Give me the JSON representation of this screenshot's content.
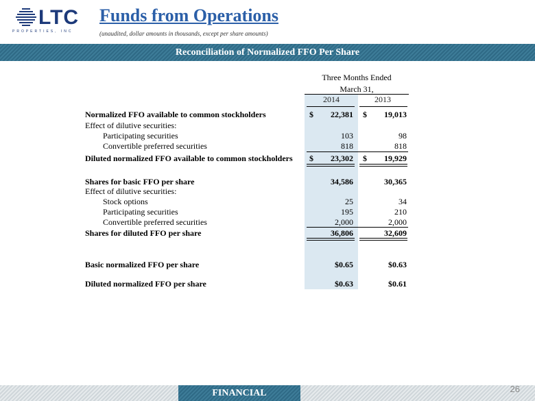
{
  "header": {
    "logo_text": "LTC",
    "logo_subtext": "PROPERTIES, INC",
    "title": "Funds from Operations",
    "subtitle": "(unaudited, dollar amounts in thousands, except per share amounts)"
  },
  "band_title": "Reconciliation of Normalized FFO  Per Share",
  "table": {
    "header_line1": "Three Months Ended",
    "header_line2": "March 31,",
    "years": [
      "2014",
      "2013"
    ],
    "rows": [
      {
        "label": "Normalized FFO available to common stockholders",
        "c1": "22,381",
        "c2": "19,013",
        "dollar": "$"
      },
      {
        "label": "Effect of dilutive securities:",
        "c1": "",
        "c2": ""
      },
      {
        "label": "Participating securities",
        "c1": "103",
        "c2": "98"
      },
      {
        "label": "Convertible preferred securities",
        "c1": "818",
        "c2": "818"
      },
      {
        "label": "Diluted normalized FFO available to common stockholders",
        "c1": "23,302",
        "c2": "19,929",
        "dollar": "$"
      },
      {
        "label": "Shares for basic FFO per share",
        "c1": "34,586",
        "c2": "30,365"
      },
      {
        "label": "Effect of dilutive securities:",
        "c1": "",
        "c2": ""
      },
      {
        "label": "Stock options",
        "c1": "25",
        "c2": "34"
      },
      {
        "label": "Participating securities",
        "c1": "195",
        "c2": "210"
      },
      {
        "label": "Convertible preferred securities",
        "c1": "2,000",
        "c2": "2,000"
      },
      {
        "label": "Shares for diluted FFO per share",
        "c1": "36,806",
        "c2": "32,609"
      },
      {
        "label": "Basic normalized FFO per share",
        "c1": "$0.65",
        "c2": "$0.63"
      },
      {
        "label": "Diluted normalized FFO per share",
        "c1": "$0.63",
        "c2": "$0.61"
      }
    ]
  },
  "footer": {
    "section_label": "FINANCIAL",
    "page_number": "26"
  },
  "colors": {
    "title_blue": "#2b5fa8",
    "band_teal": "#2f6a86",
    "shade_blue": "#dbe8f1"
  }
}
